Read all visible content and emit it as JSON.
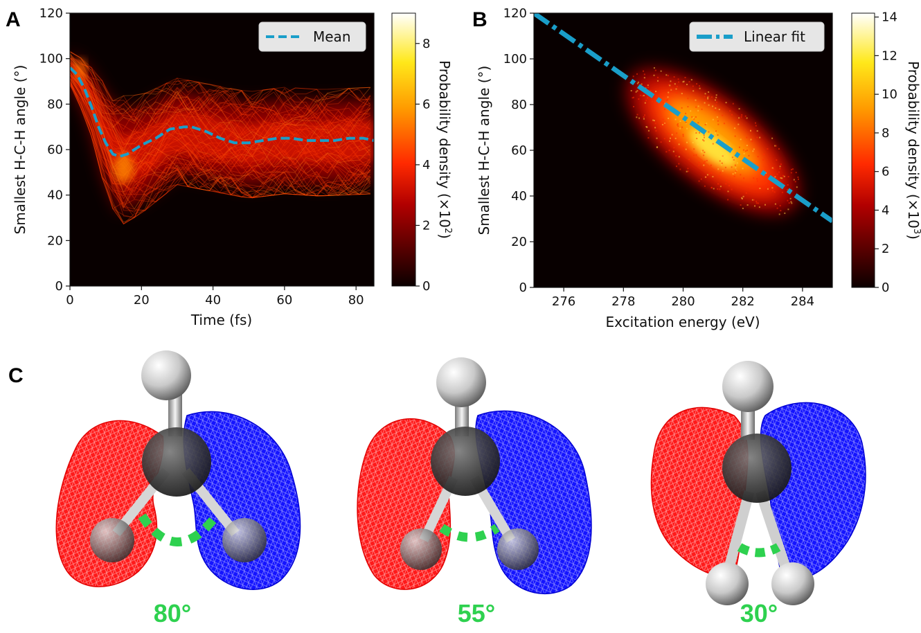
{
  "panels": {
    "a": "A",
    "b": "B",
    "c": "C"
  },
  "chart_data": [
    {
      "type": "heatmap",
      "xlabel": "Time (fs)",
      "ylabel": "Smallest H-C-H angle (°)",
      "xlim": [
        0,
        85
      ],
      "ylim": [
        0,
        120
      ],
      "xticks": [
        "0",
        "20",
        "40",
        "60",
        "80"
      ],
      "yticks": [
        "0",
        "20",
        "40",
        "60",
        "80",
        "100",
        "120"
      ],
      "colorbar": {
        "label": "Probability density (×10",
        "exponent": "2",
        "label_close": ")",
        "range": [
          0,
          9
        ],
        "ticks": [
          "0",
          "2",
          "4",
          "6",
          "8"
        ],
        "colormap": "hot"
      },
      "series": [
        {
          "name": "Mean",
          "style": "dashed",
          "color": "#1a9ec9",
          "x": [
            0,
            2,
            4,
            6,
            8,
            10,
            12,
            14,
            16,
            18,
            20,
            24,
            28,
            32,
            34,
            38,
            42,
            46,
            50,
            54,
            58,
            62,
            66,
            70,
            74,
            78,
            82,
            85
          ],
          "y": [
            96,
            93,
            87,
            79,
            70,
            63,
            58,
            57,
            58,
            60,
            62,
            65,
            69,
            70,
            70,
            68,
            65,
            63,
            63,
            64,
            65,
            65,
            64,
            64,
            64,
            65,
            65,
            64
          ]
        }
      ],
      "density_ridge": {
        "x": [
          0,
          5,
          10,
          14,
          20,
          30,
          40,
          50,
          60,
          70,
          85
        ],
        "y": [
          96,
          85,
          65,
          55,
          58,
          68,
          65,
          62,
          64,
          63,
          64
        ],
        "spread": [
          6,
          10,
          18,
          22,
          20,
          18,
          18,
          18,
          18,
          18,
          18
        ]
      },
      "legend": "top-right"
    },
    {
      "type": "heatmap",
      "xlabel": "Excitation energy (eV)",
      "ylabel": "Smallest H-C-H angle (°)",
      "xlim": [
        275,
        285
      ],
      "ylim": [
        0,
        120
      ],
      "xticks": [
        "276",
        "278",
        "280",
        "282",
        "284"
      ],
      "yticks": [
        "0",
        "20",
        "40",
        "60",
        "80",
        "100",
        "120"
      ],
      "colorbar": {
        "label": "Probability density (×10",
        "exponent": "3",
        "label_close": ")",
        "range": [
          0,
          14.2
        ],
        "ticks": [
          "0",
          "2",
          "4",
          "6",
          "8",
          "10",
          "12",
          "14"
        ],
        "colormap": "hot"
      },
      "series": [
        {
          "name": "Linear fit",
          "style": "dashdot",
          "color": "#1a9ec9",
          "x": [
            275,
            285
          ],
          "y": [
            120,
            29
          ]
        }
      ],
      "density_cloud": {
        "center": [
          281,
          64
        ],
        "extent_x": [
          277.5,
          283.8
        ],
        "extent_y": [
          22,
          102
        ]
      },
      "legend": "top-right"
    }
  ],
  "molecules": [
    {
      "angle_label": "80°"
    },
    {
      "angle_label": "55°"
    },
    {
      "angle_label": "30°"
    }
  ]
}
